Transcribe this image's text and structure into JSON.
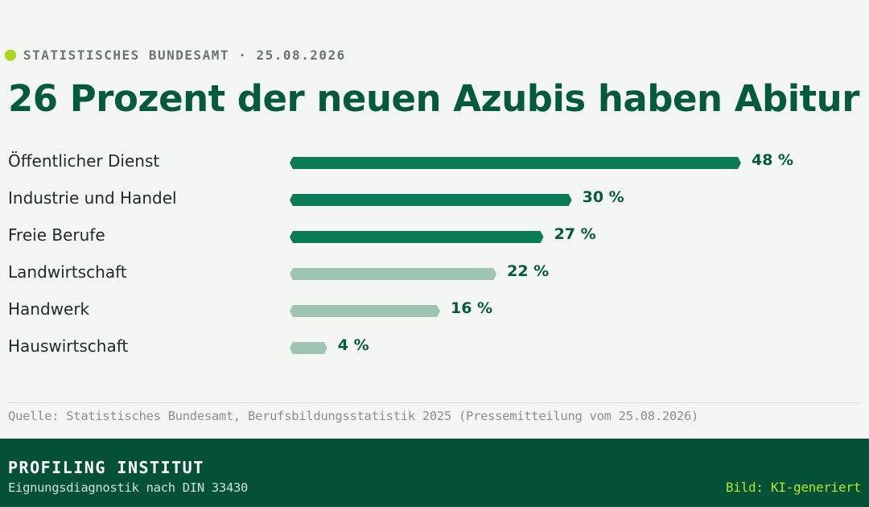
{
  "header": {
    "kicker": "STATISTISCHES BUNDESAMT · 25.08.2026",
    "title": "26 Prozent der neuen Azubis haben Abitur"
  },
  "chart_data": {
    "type": "bar",
    "orientation": "horizontal",
    "unit": "%",
    "categories": [
      "Öffentlicher Dienst",
      "Industrie und Handel",
      "Freie Berufe",
      "Landwirtschaft",
      "Handwerk",
      "Hauswirtschaft"
    ],
    "values": [
      48,
      30,
      27,
      22,
      16,
      4
    ],
    "value_labels": [
      "48 %",
      "30 %",
      "27 %",
      "22 %",
      "16 %",
      "4 %"
    ],
    "highlighted": [
      true,
      true,
      true,
      false,
      false,
      false
    ],
    "xlim": [
      0,
      48
    ],
    "grid": false,
    "colors": {
      "highlight": "#0b7a56",
      "muted": "#9fc5b2"
    }
  },
  "source": "Quelle: Statistisches Bundesamt, Berufsbildungsstatistik 2025 (Pressemitteilung vom 25.08.2026)",
  "footer": {
    "brand": "PROFILING INSTITUT",
    "subtitle": "Eignungsdiagnostik nach DIN 33430",
    "ai_note": "Bild: KI-generiert"
  },
  "colors": {
    "background": "#f4f6f3",
    "title": "#045a3c",
    "footer_bg": "#045138",
    "accent": "#a6d81c"
  }
}
